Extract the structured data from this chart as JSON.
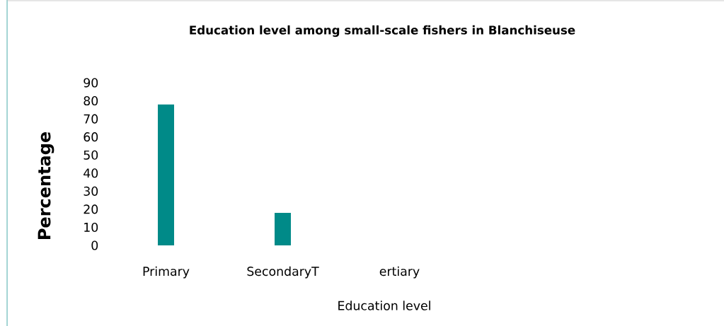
{
  "chart_data": {
    "type": "bar",
    "title": "Education level among small-scale fishers in Blanchiseuse",
    "xlabel": "Education level",
    "ylabel": "Percentage",
    "categories": [
      "Primary",
      "SecondaryT",
      "ertiary"
    ],
    "values": [
      78,
      18,
      0
    ],
    "color": "#008a88",
    "ylim": [
      0,
      90
    ],
    "yticks": [
      0,
      10,
      20,
      30,
      40,
      50,
      60,
      70,
      80,
      90
    ],
    "grid": false
  }
}
